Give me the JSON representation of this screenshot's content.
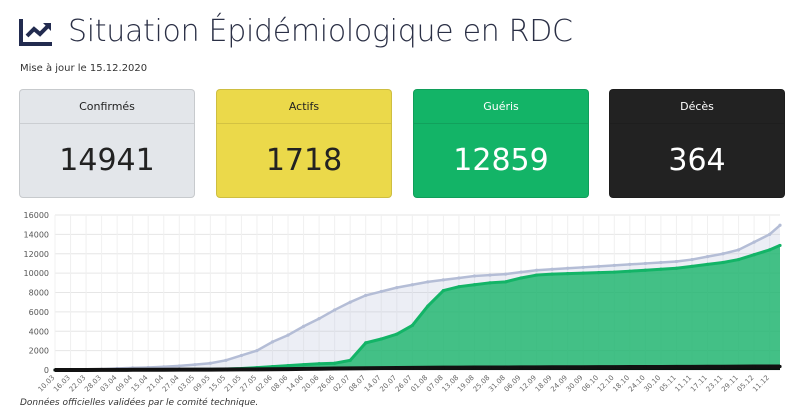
{
  "header": {
    "title": "Situation Épidémiologique en RDC",
    "updated": "Mise à jour le 15.12.2020"
  },
  "cards": [
    {
      "label": "Confirmés",
      "value": "14941"
    },
    {
      "label": "Actifs",
      "value": "1718"
    },
    {
      "label": "Guéris",
      "value": "12859"
    },
    {
      "label": "Décès",
      "value": "364"
    }
  ],
  "colors": {
    "confirmes": "#b4bdd6",
    "gueris": "#13b467",
    "deces": "#111111"
  },
  "footer": "Données officielles validées par le comité technique.",
  "chart_data": {
    "type": "area",
    "ylim": [
      0,
      16000
    ],
    "yticks": [
      0,
      2000,
      4000,
      6000,
      8000,
      10000,
      12000,
      14000,
      16000
    ],
    "categories": [
      "10.03",
      "16.03",
      "22.03",
      "28.03",
      "03.04",
      "09.04",
      "15.04",
      "21.04",
      "27.04",
      "03.05",
      "09.05",
      "15.05",
      "21.05",
      "27.05",
      "02.06",
      "08.06",
      "14.06",
      "20.06",
      "26.06",
      "02.07",
      "08.07",
      "14.07",
      "20.07",
      "26.07",
      "01.08",
      "07.08",
      "13.08",
      "19.08",
      "25.08",
      "31.08",
      "06.09",
      "12.09",
      "18.09",
      "24.09",
      "30.09",
      "06.10",
      "12.10",
      "18.10",
      "24.10",
      "30.10",
      "05.11",
      "11.11",
      "17.11",
      "23.11",
      "29.11",
      "05.12",
      "11.12",
      "15.12"
    ],
    "series": [
      {
        "name": "Confirmés",
        "values": [
          1,
          30,
          50,
          80,
          160,
          220,
          260,
          330,
          420,
          550,
          700,
          1000,
          1500,
          2000,
          2900,
          3600,
          4500,
          5300,
          6200,
          7000,
          7700,
          8100,
          8500,
          8800,
          9100,
          9300,
          9500,
          9700,
          9800,
          9900,
          10100,
          10300,
          10400,
          10500,
          10600,
          10700,
          10800,
          10900,
          11000,
          11100,
          11200,
          11400,
          11700,
          12000,
          12400,
          13200,
          14000,
          14941
        ]
      },
      {
        "name": "Guéris",
        "values": [
          0,
          0,
          3,
          5,
          10,
          20,
          30,
          40,
          50,
          60,
          70,
          100,
          150,
          250,
          350,
          450,
          550,
          650,
          700,
          1000,
          2800,
          3200,
          3700,
          4600,
          6600,
          8200,
          8600,
          8800,
          9000,
          9100,
          9500,
          9800,
          9900,
          9950,
          10000,
          10050,
          10100,
          10200,
          10300,
          10400,
          10500,
          10700,
          10900,
          11100,
          11400,
          11900,
          12400,
          12859
        ]
      },
      {
        "name": "Décès",
        "values": [
          0,
          0,
          3,
          8,
          15,
          20,
          25,
          30,
          35,
          40,
          45,
          50,
          60,
          70,
          80,
          90,
          110,
          130,
          150,
          170,
          180,
          200,
          210,
          220,
          230,
          240,
          250,
          255,
          260,
          262,
          270,
          275,
          280,
          285,
          290,
          295,
          300,
          305,
          310,
          315,
          320,
          325,
          330,
          335,
          345,
          355,
          360,
          364
        ]
      }
    ]
  }
}
